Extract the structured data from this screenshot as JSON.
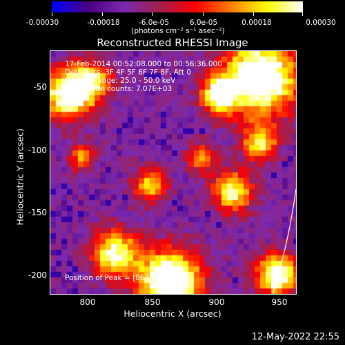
{
  "colorbar": {
    "ticks": [
      "-0.00030",
      "-0.00018",
      "-6.0e-05",
      "6.0e-05",
      "0.00018",
      "0.00030"
    ],
    "units": "(photons cm⁻² s⁻¹ asec⁻²)"
  },
  "title": "Reconstructed RHESSI Image",
  "info": {
    "line1": "17-Feb-2014 00:52:08.000 to 00:56:36.000",
    "line2": "Detectors: 3F 4F 5F 6F 7F 8F, Att 0",
    "line3": "Energy Range: 25.0 - 50.0 keV",
    "line4": "Clean    Total counts: 7.07E+03"
  },
  "peak_label": "Position of Peak = [867,-214]",
  "axes": {
    "xlabel": "Heliocentric X (arcsec)",
    "ylabel": "Heliocentric Y (arcsec)",
    "xticks": [
      "800",
      "850",
      "900",
      "950"
    ],
    "yticks": [
      "-50",
      "-100",
      "-150",
      "-200"
    ]
  },
  "timestamp": "12-May-2022 22:55",
  "colors": {
    "colormap": [
      "#0000ff",
      "#4b0082",
      "#7b2ab0",
      "#a02050",
      "#ff0000",
      "#ff8000",
      "#ffff00",
      "#ffffff"
    ]
  }
}
